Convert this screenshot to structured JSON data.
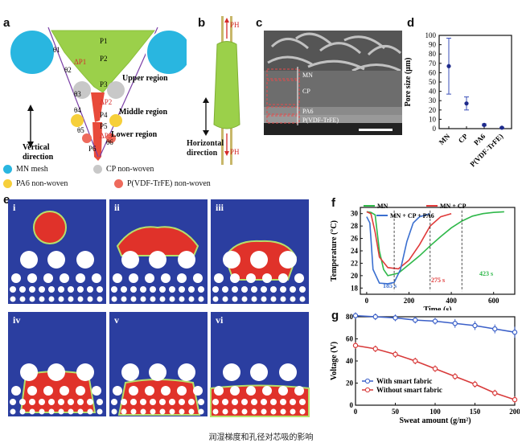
{
  "caption": "润湿梯度和孔径对芯吸的影响",
  "panel_letters": {
    "a": "a",
    "b": "b",
    "c": "c",
    "d": "d",
    "e": "e",
    "f": "f",
    "g": "g"
  },
  "panel_a": {
    "regions": [
      "Upper region",
      "Middle region",
      "Lower region"
    ],
    "labels": {
      "theta1": "θ1",
      "theta2": "θ2",
      "theta3": "θ3",
      "theta4": "θ4",
      "theta5": "θ5",
      "theta6": "θ6",
      "p1": "P1",
      "p2": "P2",
      "p3": "P3",
      "p4": "P4",
      "p5": "P5",
      "p6": "P6",
      "dp1": "ΔP1",
      "dp2": "ΔP2",
      "dp3": "ΔP3"
    },
    "vertical_direction": [
      "Vertical",
      "direction"
    ]
  },
  "legend": [
    {
      "name": "MN mesh",
      "color": "#29b6e0"
    },
    {
      "name": "CP non-woven",
      "color": "#c8c8c8"
    },
    {
      "name": "PA6 non-woven",
      "color": "#f6cf3a"
    },
    {
      "name": "P(VDF-TrFE) non-woven",
      "color": "#ee6a5c"
    }
  ],
  "panel_b": {
    "top": "PH",
    "bottom": "PH",
    "horizontal_direction": [
      "Horizontal",
      "direction"
    ]
  },
  "panel_c": {
    "layers": [
      "MN",
      "CP",
      "PA6",
      "P(VDF-TrFE)"
    ]
  },
  "panel_e": {
    "sub": [
      "i",
      "ii",
      "iii",
      "iv",
      "v",
      "vi"
    ]
  },
  "colors": {
    "blue": "#2b3ea0",
    "red": "#e0322a",
    "green": "#9bd04a",
    "drop_green": "#b6e06a"
  },
  "chart_data": [
    {
      "panel": "d",
      "type": "scatter",
      "categories": [
        "MN",
        "CP",
        "PA6",
        "P(VDF-TrFE)"
      ],
      "values": [
        67,
        27,
        4,
        1
      ],
      "errors": [
        30,
        7,
        1,
        0.5
      ],
      "ylabel": "Pore size (μm)",
      "ylim": [
        0,
        100
      ],
      "yticks": [
        0,
        10,
        20,
        30,
        40,
        50,
        60,
        70,
        80,
        90,
        100
      ]
    },
    {
      "panel": "f",
      "type": "line",
      "xlabel": "Time (s)",
      "ylabel": "Temperature (°C)",
      "xlim": [
        -30,
        700
      ],
      "ylim": [
        17,
        31
      ],
      "xticks": [
        0,
        200,
        400,
        600
      ],
      "yticks": [
        18,
        20,
        22,
        24,
        26,
        28,
        30
      ],
      "series": [
        {
          "name": "MN",
          "color": "#2fb84a",
          "x": [
            0,
            20,
            40,
            60,
            80,
            100,
            150,
            200,
            250,
            300,
            350,
            400,
            450,
            500,
            550,
            600,
            650
          ],
          "y": [
            30.3,
            30.2,
            29.8,
            24,
            21,
            20,
            20.4,
            21.8,
            23.2,
            24.8,
            26.3,
            27.7,
            28.8,
            29.6,
            30,
            30.2,
            30.3
          ]
        },
        {
          "name": "MN + CP",
          "color": "#e03a3a",
          "x": [
            0,
            20,
            40,
            60,
            100,
            150,
            200,
            250,
            300,
            350,
            400
          ],
          "y": [
            30.3,
            30,
            27,
            23,
            21.3,
            21.1,
            22.5,
            25,
            28,
            29.5,
            30
          ]
        },
        {
          "name": "MN + CP + PA6",
          "color": "#3a6fd0",
          "x": [
            0,
            15,
            30,
            60,
            100,
            130,
            160,
            190,
            220,
            250,
            300
          ],
          "y": [
            29.5,
            28.5,
            21,
            18.8,
            18.7,
            18.9,
            21,
            25.5,
            28.5,
            29.5,
            30
          ]
        }
      ],
      "annotations": [
        "185 s",
        "275 s",
        "423 s"
      ]
    },
    {
      "panel": "g",
      "type": "line",
      "xlabel": "Sweat amount (g/m²)",
      "ylabel": "Voltage (V)",
      "xlim": [
        0,
        200
      ],
      "ylim": [
        0,
        80
      ],
      "xticks": [
        0,
        50,
        100,
        150,
        200
      ],
      "yticks": [
        0,
        20,
        40,
        60,
        80
      ],
      "series": [
        {
          "name": "With smart fabric",
          "color": "#3a5fc8",
          "x": [
            0,
            25,
            50,
            75,
            100,
            125,
            150,
            175,
            200
          ],
          "y": [
            81,
            80,
            79,
            77,
            76,
            74,
            72,
            69,
            66
          ],
          "errors": [
            3,
            3,
            3,
            3,
            3,
            4,
            4,
            4,
            5
          ]
        },
        {
          "name": "Without smart fabric",
          "color": "#d83a3a",
          "x": [
            0,
            25,
            50,
            75,
            100,
            125,
            150,
            175,
            200
          ],
          "y": [
            54,
            51,
            46,
            40,
            33,
            26,
            19,
            11,
            5
          ],
          "errors": [
            3,
            3,
            3,
            3,
            3,
            3,
            3,
            3,
            3
          ]
        }
      ]
    }
  ]
}
